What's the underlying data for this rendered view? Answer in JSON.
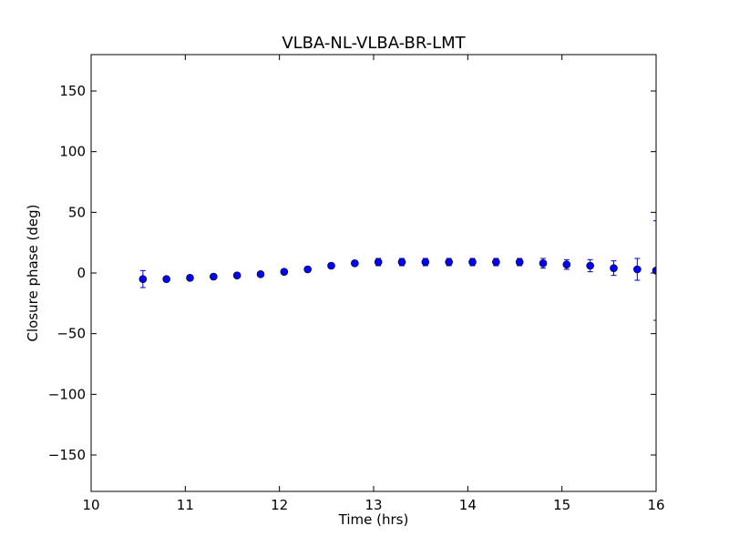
{
  "chart_data": {
    "type": "scatter",
    "title": "VLBA-NL-VLBA-BR-LMT",
    "xlabel": "Time (hrs)",
    "ylabel": "Closure phase (deg)",
    "xlim": [
      10,
      16
    ],
    "ylim": [
      -180,
      180
    ],
    "xticks": [
      10,
      11,
      12,
      13,
      14,
      15,
      16
    ],
    "xtick_labels": [
      "10",
      "11",
      "12",
      "13",
      "14",
      "15",
      "16"
    ],
    "yticks": [
      -150,
      -100,
      -50,
      0,
      50,
      100,
      150
    ],
    "ytick_labels": [
      "−150",
      "−100",
      "−50",
      "0",
      "50",
      "100",
      "150"
    ],
    "grid": false,
    "marker_color": "#0000ff",
    "errorbar_color": "#0000cc",
    "series": [
      {
        "x": [
          10.55,
          10.8,
          11.05,
          11.3,
          11.55,
          11.8,
          12.05,
          12.3,
          12.55,
          12.8,
          13.05,
          13.3,
          13.55,
          13.8,
          14.05,
          14.3,
          14.55,
          14.8,
          15.05,
          15.3,
          15.55,
          15.8,
          16.0
        ],
        "y": [
          -5,
          -5,
          -4,
          -3,
          -2,
          -1,
          1,
          3,
          6,
          8,
          9,
          9,
          9,
          9,
          9,
          9,
          9,
          8,
          7,
          6,
          4,
          3,
          2
        ],
        "yerr": [
          7,
          2,
          2,
          2,
          2,
          2,
          2,
          2,
          2,
          2,
          3,
          3,
          3,
          3,
          3,
          3,
          3,
          4,
          4,
          5,
          6,
          9,
          41
        ]
      }
    ]
  }
}
